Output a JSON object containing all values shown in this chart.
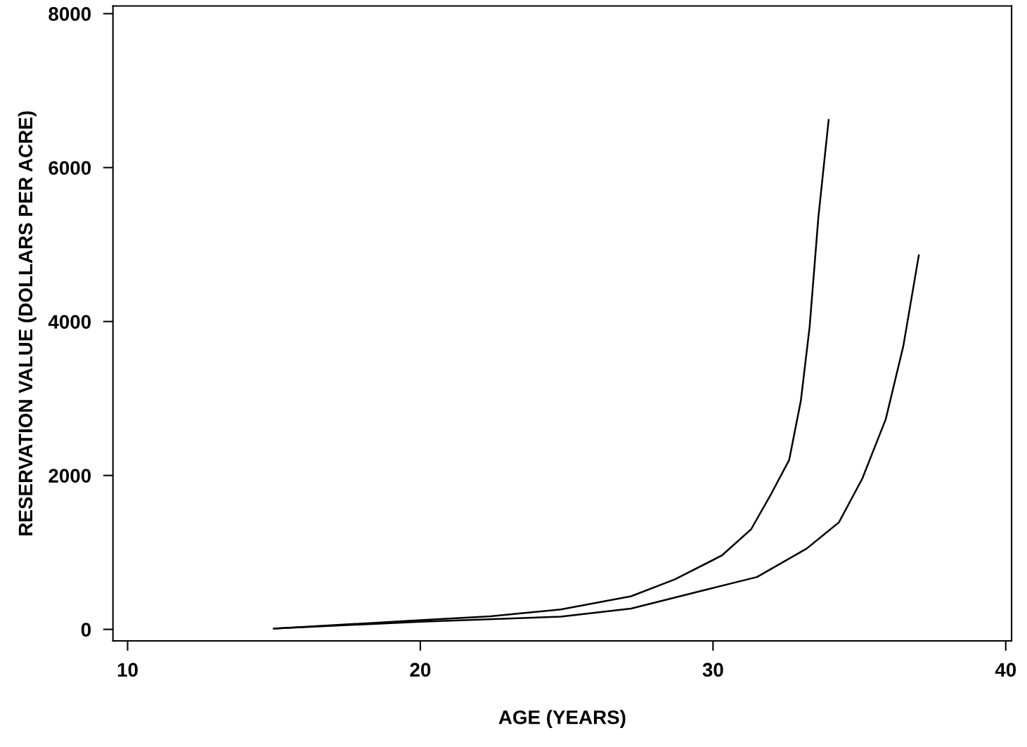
{
  "chart_data": {
    "type": "line",
    "xlabel": "AGE (YEARS)",
    "ylabel": "RESERVATION VALUE (DOLLARS PER ACRE)",
    "xlim": [
      9.5,
      40.2
    ],
    "ylim": [
      -150,
      8100
    ],
    "xticks": [
      10,
      20,
      30,
      40
    ],
    "yticks": [
      0,
      2000,
      4000,
      6000,
      8000
    ],
    "grid": false,
    "legend": false,
    "marker": "none",
    "line_style": "solid",
    "series": [
      {
        "color": "#000000",
        "x": [
          15.0,
          20.0,
          22.4,
          24.8,
          27.2,
          28.7,
          30.3,
          31.3,
          32.0,
          32.6,
          33.0,
          33.3,
          33.6,
          33.95
        ],
        "values": [
          10,
          120,
          170,
          260,
          430,
          650,
          960,
          1300,
          1770,
          2200,
          2970,
          3930,
          5360,
          6620
        ]
      },
      {
        "color": "#000000",
        "x": [
          15.0,
          20.0,
          24.8,
          27.2,
          29.8,
          31.5,
          33.2,
          34.3,
          35.1,
          35.9,
          36.5,
          37.03
        ],
        "values": [
          10,
          100,
          165,
          270,
          520,
          680,
          1050,
          1390,
          1960,
          2730,
          3680,
          4860
        ]
      }
    ]
  }
}
